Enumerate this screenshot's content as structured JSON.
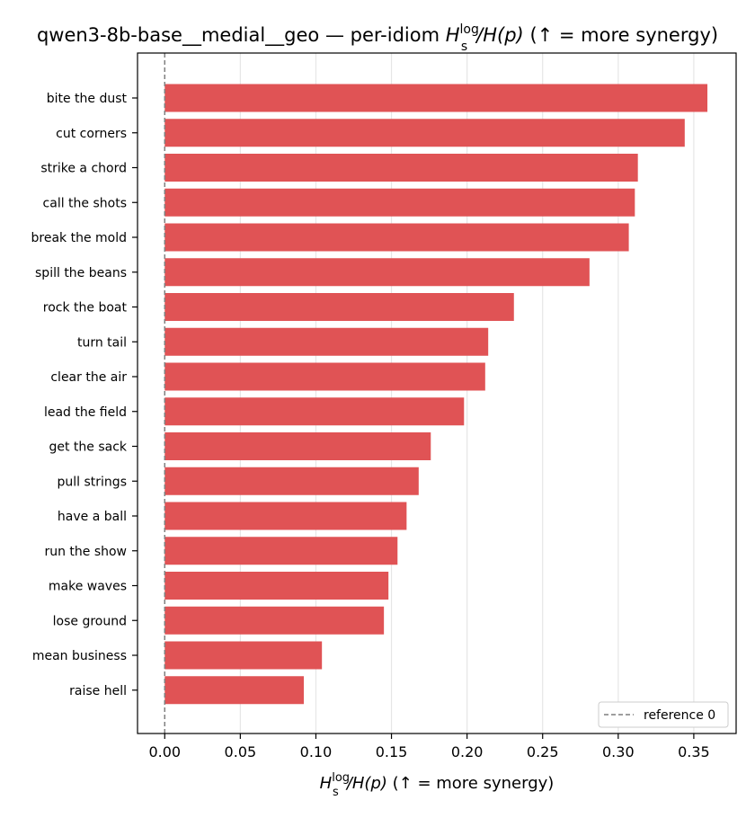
{
  "chart_data": {
    "type": "bar",
    "orientation": "horizontal",
    "title": {
      "prefix": "qwen3-8b-base__medial__geo — per-idiom ",
      "suffix": "  (↑ = more synergy)"
    },
    "xlabel": {
      "suffix": "  (↑ = more synergy)"
    },
    "math": {
      "H": "H",
      "sup": "log",
      "sub": "s",
      "ratio": "/H(p)"
    },
    "categories": [
      "bite the dust",
      "cut corners",
      "strike a chord",
      "call the shots",
      "break the mold",
      "spill the beans",
      "rock the boat",
      "turn tail",
      "clear the air",
      "lead the field",
      "get the sack",
      "pull strings",
      "have a ball",
      "run the show",
      "make waves",
      "lose ground",
      "mean business",
      "raise hell"
    ],
    "values": [
      0.359,
      0.344,
      0.313,
      0.311,
      0.307,
      0.281,
      0.231,
      0.214,
      0.212,
      0.198,
      0.176,
      0.168,
      0.16,
      0.154,
      0.148,
      0.145,
      0.104,
      0.092
    ],
    "xlim": [
      -0.018,
      0.378
    ],
    "xticks": [
      "0.00",
      "0.05",
      "0.10",
      "0.15",
      "0.20",
      "0.25",
      "0.30",
      "0.35"
    ],
    "grid": "x",
    "reference_line": {
      "value": 0,
      "label": "reference 0"
    },
    "legend_position": "lower-right",
    "bar_color": "#e05355"
  }
}
